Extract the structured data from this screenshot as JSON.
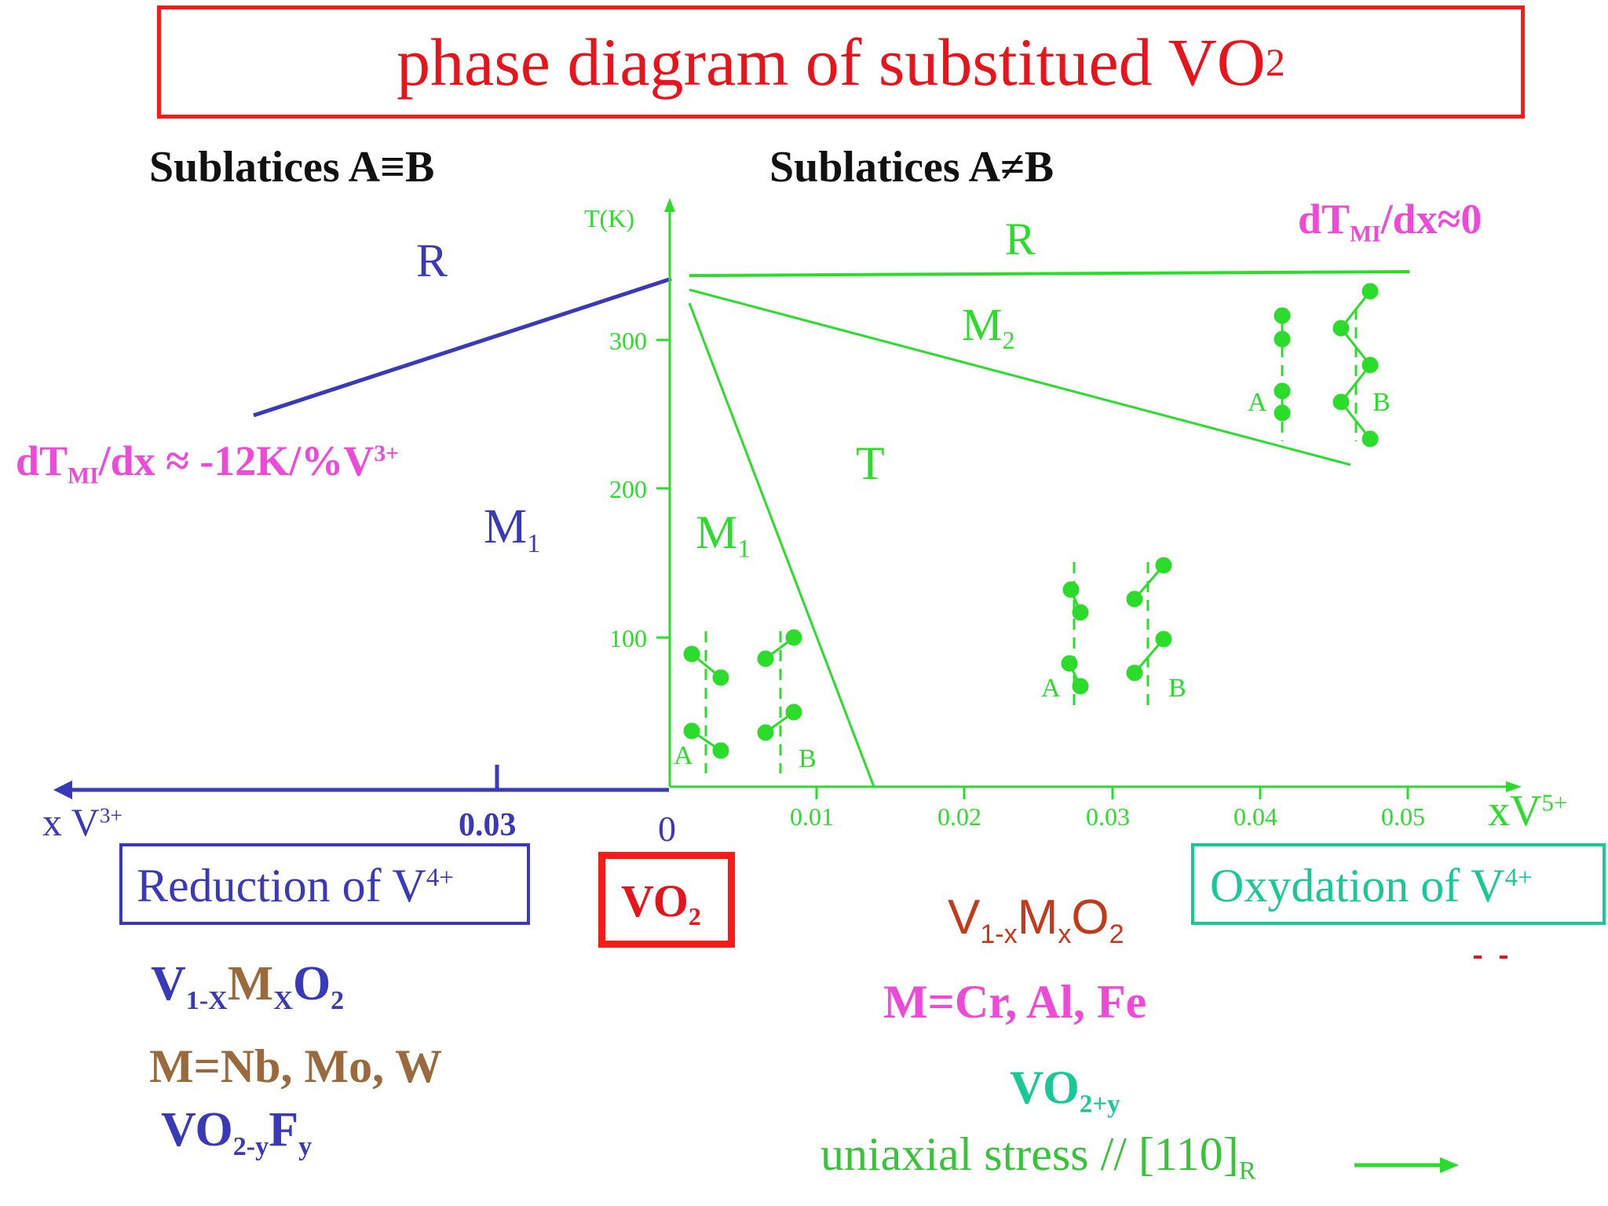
{
  "title": {
    "prefix": "phase diagram of substitued VO",
    "sub": "2"
  },
  "headings": {
    "left": "Sublatices A≡B",
    "right": "Sublatices A≠B"
  },
  "left_diagram": {
    "phase_R": "R",
    "phase_M1": "M",
    "phase_M1_sub": "1",
    "slope_a": "dT",
    "slope_sub": "MI",
    "slope_b": "/dx ≈ -12K/%V",
    "slope_sup": "3+",
    "axis_x": "x  V",
    "axis_x_sup": "3+",
    "tick_003": "0.03",
    "tick_0": "0"
  },
  "right_diagram": {
    "y_axis_label": "T(K)",
    "y_ticks": [
      "300",
      "200",
      "100"
    ],
    "x_ticks": [
      "0.01",
      "0.02",
      "0.03",
      "0.04",
      "0.05"
    ],
    "axis_x": "xV",
    "axis_x_sup": "5+",
    "phase_R": "R",
    "phase_M2": "M",
    "phase_M2_sub": "2",
    "phase_T": "T",
    "phase_M1": "M",
    "phase_M1_sub": "1",
    "slope_a": "dT",
    "slope_sub": "MI",
    "slope_b": "/dx≈0",
    "sublattice_A": "A",
    "sublattice_B": "B"
  },
  "bottom": {
    "reduction_a": "Reduction of V",
    "reduction_sup": "4+",
    "vo2_a": "VO",
    "vo2_sub": "2",
    "oxydation_a": "Oxydation of V",
    "oxydation_sup": "4+",
    "left_formula": {
      "p1": "V",
      "s1": "1-X",
      "p2": "M",
      "s2": "X",
      "p3": "O",
      "s3": "2"
    },
    "left_m": "M=Nb, Mo, W",
    "left_f": {
      "p1": "VO",
      "s1": "2-y",
      "p2": "F",
      "s2": "y"
    },
    "right_formula": {
      "p1": "V",
      "s1": "1-x",
      "p2": "M",
      "s2": "x",
      "p3": "O",
      "s3": "2"
    },
    "right_m": "M=Cr, Al, Fe",
    "right_vo": {
      "p1": "VO",
      "s1": "2+y"
    },
    "stress": {
      "p1": "uniaxial stress // [110]",
      "s1": "R"
    }
  },
  "colors": {
    "title_red": "#e8141b",
    "blue": "#3a3ab8",
    "green": "#2bdc2b",
    "magenta": "#ee4ad8",
    "teal": "#18c897",
    "brown": "#9b6a3c"
  }
}
